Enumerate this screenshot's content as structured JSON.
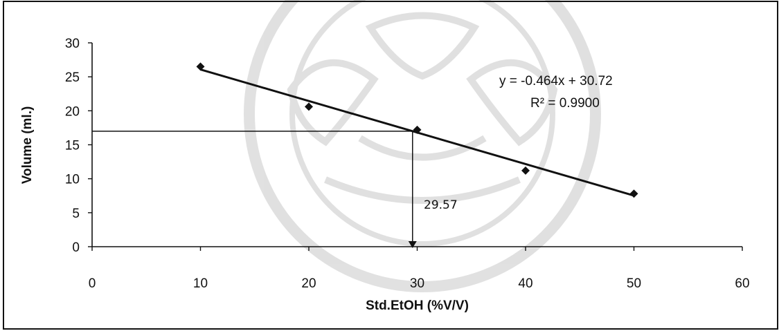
{
  "chart_data": {
    "type": "scatter",
    "xlabel": "Std.EtOH (%V/V)",
    "ylabel": "Volume (ml.)",
    "xlim": [
      0,
      60
    ],
    "ylim": [
      0,
      30
    ],
    "x_ticks": [
      0,
      10,
      20,
      30,
      40,
      50,
      60
    ],
    "y_ticks": [
      0,
      5,
      10,
      15,
      20,
      25,
      30
    ],
    "grid": false,
    "series": [
      {
        "x": [
          10,
          20,
          30,
          40,
          50
        ],
        "y": [
          26.5,
          20.6,
          17.2,
          11.2,
          7.8
        ],
        "marker": "diamond",
        "color": "#111111"
      }
    ],
    "trendline": {
      "type": "linear",
      "slope": -0.464,
      "intercept": 30.72,
      "x_range": [
        10,
        50
      ],
      "color": "#111111",
      "equation": "y = -0.464x + 30.72",
      "r2": "R² = 0.9900"
    },
    "annotation": {
      "x": 29.57,
      "y": 17,
      "label": "29.57"
    }
  },
  "watermark": {
    "type": "university-seal",
    "present": true
  }
}
